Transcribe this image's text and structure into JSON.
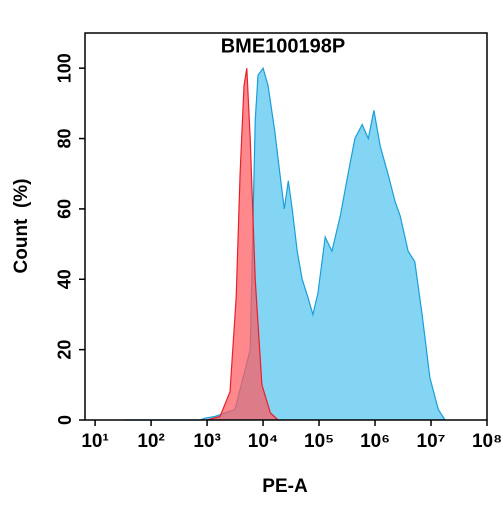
{
  "chart_data": {
    "type": "area",
    "title": "BME100198P",
    "x_label": "PE-A",
    "y_label": "Count  (%)",
    "log_x": true,
    "xlim": [
      6.6,
      100000000
    ],
    "ylim": [
      0,
      110
    ],
    "xticks": [
      {
        "value": 10,
        "label": "10¹"
      },
      {
        "value": 100,
        "label": "10²"
      },
      {
        "value": 1000,
        "label": "10³"
      },
      {
        "value": 10000,
        "label": "10⁴"
      },
      {
        "value": 100000,
        "label": "10⁵"
      },
      {
        "value": 1000000,
        "label": "10⁶"
      },
      {
        "value": 10000000,
        "label": "10⁷"
      },
      {
        "value": 100000000,
        "label": "10⁸"
      }
    ],
    "yticks": [
      0,
      20,
      40,
      60,
      80,
      100
    ],
    "series": [
      {
        "color": "#1a9fd9",
        "fill": "#84d4f4",
        "x": [
          32,
          750,
          912,
          1380,
          3160,
          5890,
          7240,
          8130,
          10000,
          12300,
          16200,
          20000,
          24000,
          28200,
          33100,
          40700,
          50100,
          63100,
          77600,
          95500,
          129000,
          170000,
          240000,
          331000,
          437000,
          589000,
          759000,
          955000,
          1230000,
          1700000,
          2290000,
          2820000,
          3890000,
          5130000,
          6920000,
          9550000,
          13500000,
          17800000
        ],
        "values": [
          0,
          0,
          0.5,
          1,
          3,
          20,
          85,
          98,
          100,
          95,
          82,
          70,
          60,
          68,
          60,
          48,
          40,
          35,
          30,
          36,
          52,
          48,
          58,
          70,
          80,
          84,
          80,
          88,
          78,
          70,
          62,
          58,
          48,
          45,
          30,
          12,
          3,
          0
        ]
      },
      {
        "color": "#e8202a",
        "fill": "#ff5a5f",
        "x": [
          1000,
          1700,
          2570,
          3310,
          3890,
          4570,
          5130,
          5890,
          7240,
          9550,
          13500,
          18600
        ],
        "values": [
          0,
          1,
          8,
          35,
          70,
          95,
          100,
          80,
          40,
          10,
          2,
          0
        ]
      }
    ]
  }
}
